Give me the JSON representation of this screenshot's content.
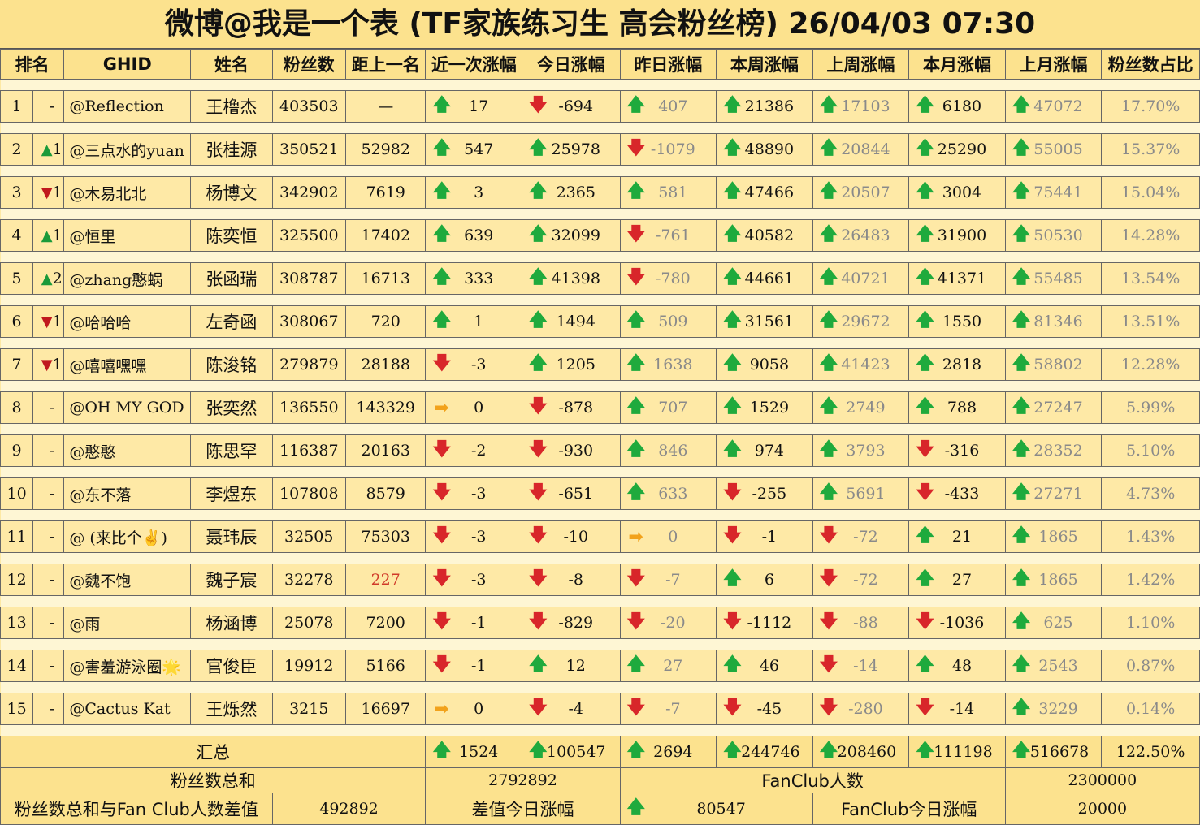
{
  "title": "微博@我是一个表 (TF家族练习生 高会粉丝榜)  26/04/03 07:30",
  "columns": [
    "排名",
    "GHID",
    "姓名",
    "粉丝数",
    "距上一名",
    "近一次涨幅",
    "今日涨幅",
    "昨日涨幅",
    "本周涨幅",
    "上周涨幅",
    "本月涨幅",
    "上月涨幅",
    "粉丝数占比"
  ],
  "rows": [
    {
      "rank": "1",
      "chg": "-",
      "chg_dir": "none",
      "ghid": "@Reflection",
      "name": "王橹杰",
      "fans": "403503",
      "gap": "—",
      "recent": "17",
      "recent_dir": "up",
      "today": "-694",
      "today_dir": "dn",
      "yday": "407",
      "yday_dir": "up",
      "week": "21386",
      "week_dir": "up",
      "lweek": "17103",
      "lweek_dir": "up",
      "month": "6180",
      "month_dir": "up",
      "lmonth": "47072",
      "lmonth_dir": "up",
      "share": "17.70%"
    },
    {
      "rank": "2",
      "chg": "1",
      "chg_dir": "up",
      "ghid": "@三点水的yuan",
      "name": "张桂源",
      "fans": "350521",
      "gap": "52982",
      "recent": "547",
      "recent_dir": "up",
      "today": "25978",
      "today_dir": "up",
      "yday": "-1079",
      "yday_dir": "dn",
      "week": "48890",
      "week_dir": "up",
      "lweek": "20844",
      "lweek_dir": "up",
      "month": "25290",
      "month_dir": "up",
      "lmonth": "55005",
      "lmonth_dir": "up",
      "share": "15.37%"
    },
    {
      "rank": "3",
      "chg": "1",
      "chg_dir": "dn",
      "ghid": "@木易北北",
      "name": "杨博文",
      "fans": "342902",
      "gap": "7619",
      "recent": "3",
      "recent_dir": "up",
      "today": "2365",
      "today_dir": "up",
      "yday": "581",
      "yday_dir": "up",
      "week": "47466",
      "week_dir": "up",
      "lweek": "20507",
      "lweek_dir": "up",
      "month": "3004",
      "month_dir": "up",
      "lmonth": "75441",
      "lmonth_dir": "up",
      "share": "15.04%"
    },
    {
      "rank": "4",
      "chg": "1",
      "chg_dir": "up",
      "ghid": "@恒里",
      "name": "陈奕恒",
      "fans": "325500",
      "gap": "17402",
      "recent": "639",
      "recent_dir": "up",
      "today": "32099",
      "today_dir": "up",
      "yday": "-761",
      "yday_dir": "dn",
      "week": "40582",
      "week_dir": "up",
      "lweek": "26483",
      "lweek_dir": "up",
      "month": "31900",
      "month_dir": "up",
      "lmonth": "50530",
      "lmonth_dir": "up",
      "share": "14.28%"
    },
    {
      "rank": "5",
      "chg": "2",
      "chg_dir": "up",
      "ghid": "@zhang憨蜗",
      "name": "张函瑞",
      "fans": "308787",
      "gap": "16713",
      "recent": "333",
      "recent_dir": "up",
      "today": "41398",
      "today_dir": "up",
      "yday": "-780",
      "yday_dir": "dn",
      "week": "44661",
      "week_dir": "up",
      "lweek": "40721",
      "lweek_dir": "up",
      "month": "41371",
      "month_dir": "up",
      "lmonth": "55485",
      "lmonth_dir": "up",
      "share": "13.54%"
    },
    {
      "rank": "6",
      "chg": "1",
      "chg_dir": "dn",
      "ghid": "@哈哈哈",
      "name": "左奇函",
      "fans": "308067",
      "gap": "720",
      "recent": "1",
      "recent_dir": "up",
      "today": "1494",
      "today_dir": "up",
      "yday": "509",
      "yday_dir": "up",
      "week": "31561",
      "week_dir": "up",
      "lweek": "29672",
      "lweek_dir": "up",
      "month": "1550",
      "month_dir": "up",
      "lmonth": "81346",
      "lmonth_dir": "up",
      "share": "13.51%"
    },
    {
      "rank": "7",
      "chg": "1",
      "chg_dir": "dn",
      "ghid": "@嘻嘻嘿嘿",
      "name": "陈浚铭",
      "fans": "279879",
      "gap": "28188",
      "recent": "-3",
      "recent_dir": "dn",
      "today": "1205",
      "today_dir": "up",
      "yday": "1638",
      "yday_dir": "up",
      "week": "9058",
      "week_dir": "up",
      "lweek": "41423",
      "lweek_dir": "up",
      "month": "2818",
      "month_dir": "up",
      "lmonth": "58802",
      "lmonth_dir": "up",
      "share": "12.28%"
    },
    {
      "rank": "8",
      "chg": "-",
      "chg_dir": "none",
      "ghid": "@OH MY GOD",
      "name": "张奕然",
      "fans": "136550",
      "gap": "143329",
      "recent": "0",
      "recent_dir": "flat",
      "today": "-878",
      "today_dir": "dn",
      "yday": "707",
      "yday_dir": "up",
      "week": "1529",
      "week_dir": "up",
      "lweek": "2749",
      "lweek_dir": "up",
      "month": "788",
      "month_dir": "up",
      "lmonth": "27247",
      "lmonth_dir": "up",
      "share": "5.99%"
    },
    {
      "rank": "9",
      "chg": "-",
      "chg_dir": "none",
      "ghid": "@憨憨",
      "name": "陈思罕",
      "fans": "116387",
      "gap": "20163",
      "recent": "-2",
      "recent_dir": "dn",
      "today": "-930",
      "today_dir": "dn",
      "yday": "846",
      "yday_dir": "up",
      "week": "974",
      "week_dir": "up",
      "lweek": "3793",
      "lweek_dir": "up",
      "month": "-316",
      "month_dir": "dn",
      "lmonth": "28352",
      "lmonth_dir": "up",
      "share": "5.10%"
    },
    {
      "rank": "10",
      "chg": "-",
      "chg_dir": "none",
      "ghid": "@东不落",
      "name": "李煜东",
      "fans": "107808",
      "gap": "8579",
      "recent": "-3",
      "recent_dir": "dn",
      "today": "-651",
      "today_dir": "dn",
      "yday": "633",
      "yday_dir": "up",
      "week": "-255",
      "week_dir": "dn",
      "lweek": "5691",
      "lweek_dir": "up",
      "month": "-433",
      "month_dir": "dn",
      "lmonth": "27271",
      "lmonth_dir": "up",
      "share": "4.73%"
    },
    {
      "rank": "11",
      "chg": "-",
      "chg_dir": "none",
      "ghid": "@ (来比个✌)",
      "name": "聂玮辰",
      "fans": "32505",
      "gap": "75303",
      "recent": "-3",
      "recent_dir": "dn",
      "today": "-10",
      "today_dir": "dn",
      "yday": "0",
      "yday_dir": "flat",
      "week": "-1",
      "week_dir": "dn",
      "lweek": "-72",
      "lweek_dir": "dn",
      "month": "21",
      "month_dir": "up",
      "lmonth": "1865",
      "lmonth_dir": "up",
      "share": "1.43%"
    },
    {
      "rank": "12",
      "chg": "-",
      "chg_dir": "none",
      "ghid": "@魏不饱",
      "name": "魏子宸",
      "fans": "32278",
      "gap": "227",
      "gap_red": true,
      "recent": "-3",
      "recent_dir": "dn",
      "today": "-8",
      "today_dir": "dn",
      "yday": "-7",
      "yday_dir": "dn",
      "week": "6",
      "week_dir": "up",
      "lweek": "-72",
      "lweek_dir": "dn",
      "month": "27",
      "month_dir": "up",
      "lmonth": "1865",
      "lmonth_dir": "up",
      "share": "1.42%"
    },
    {
      "rank": "13",
      "chg": "-",
      "chg_dir": "none",
      "ghid": "@雨",
      "name": "杨涵博",
      "fans": "25078",
      "gap": "7200",
      "recent": "-1",
      "recent_dir": "dn",
      "today": "-829",
      "today_dir": "dn",
      "yday": "-20",
      "yday_dir": "dn",
      "week": "-1112",
      "week_dir": "dn",
      "lweek": "-88",
      "lweek_dir": "dn",
      "month": "-1036",
      "month_dir": "dn",
      "lmonth": "625",
      "lmonth_dir": "up",
      "share": "1.10%"
    },
    {
      "rank": "14",
      "chg": "-",
      "chg_dir": "none",
      "ghid": "@害羞游泳圈🌟",
      "name": "官俊臣",
      "fans": "19912",
      "gap": "5166",
      "recent": "-1",
      "recent_dir": "dn",
      "today": "12",
      "today_dir": "up",
      "yday": "27",
      "yday_dir": "up",
      "week": "46",
      "week_dir": "up",
      "lweek": "-14",
      "lweek_dir": "dn",
      "month": "48",
      "month_dir": "up",
      "lmonth": "2543",
      "lmonth_dir": "up",
      "share": "0.87%"
    },
    {
      "rank": "15",
      "chg": "-",
      "chg_dir": "none",
      "ghid": "@Cactus Kat",
      "name": "王烁然",
      "fans": "3215",
      "gap": "16697",
      "recent": "0",
      "recent_dir": "flat",
      "today": "-4",
      "today_dir": "dn",
      "yday": "-7",
      "yday_dir": "dn",
      "week": "-45",
      "week_dir": "dn",
      "lweek": "-280",
      "lweek_dir": "dn",
      "month": "-14",
      "month_dir": "dn",
      "lmonth": "3229",
      "lmonth_dir": "up",
      "share": "0.14%"
    }
  ],
  "summary": {
    "total_label": "汇总",
    "recent": "1524",
    "today": "100547",
    "yday": "2694",
    "week": "244746",
    "lweek": "208460",
    "month": "111198",
    "lmonth": "516678",
    "share": "122.50%",
    "fans_sum_label": "粉丝数总和",
    "fans_sum": "2792892",
    "fanclub_label": "FanClub人数",
    "fanclub": "2300000",
    "diff_label": "粉丝数总和与Fan Club人数差值",
    "diff": "492892",
    "diff_today_label": "差值今日涨幅",
    "diff_today": "80547",
    "fanclub_today_label": "FanClub今日涨幅",
    "fanclub_today": "20000"
  },
  "icons": {
    "up": "arrow-up-icon",
    "dn": "arrow-down-icon",
    "flat": "arrow-right-icon"
  },
  "colors": {
    "background": "#FDE9A4",
    "header": "#FCE28E",
    "up": "#1faa3d",
    "down": "#d8262a",
    "flat": "#f2a21b"
  }
}
